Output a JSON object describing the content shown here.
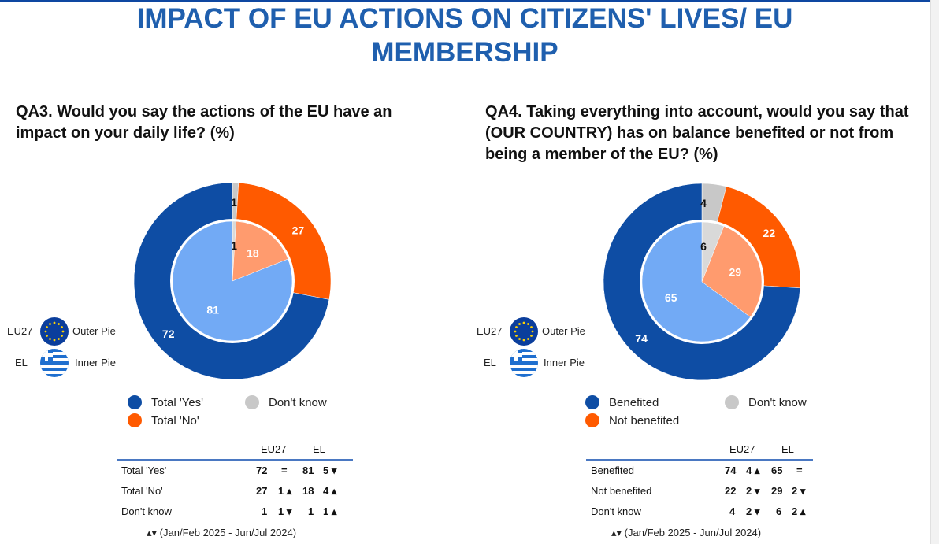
{
  "title": "IMPACT OF EU ACTIONS ON CITIZENS' LIVES/ EU MEMBERSHIP",
  "colors": {
    "title": "#1f5fae",
    "eu_yes": "#0e4da4",
    "eu_no": "#ff5a00",
    "eu_dk": "#c8c8c8",
    "el_yes": "#72aaf5",
    "el_no": "#ff9b6e",
    "el_dk": "#d9d9d9"
  },
  "pie_key": {
    "eu27": "EU27",
    "outer": "Outer Pie",
    "el": "EL",
    "inner": "Inner Pie",
    "eu_flag_icon": "eu-flag-icon",
    "greece_flag_icon": "greece-flag-icon"
  },
  "chart_data": [
    {
      "type": "pie",
      "question": "QA3. Would you say the actions of the EU have an impact on your daily life? (%)",
      "legend": [
        "Total 'Yes'",
        "Don't know",
        "Total 'No'"
      ],
      "outer": {
        "name": "EU27",
        "slices": [
          {
            "label": "Don't know",
            "value": 1
          },
          {
            "label": "Total 'No'",
            "value": 27
          },
          {
            "label": "Total 'Yes'",
            "value": 72
          }
        ]
      },
      "inner": {
        "name": "EL",
        "slices": [
          {
            "label": "Don't know",
            "value": 1
          },
          {
            "label": "Total 'No'",
            "value": 18
          },
          {
            "label": "Total 'Yes'",
            "value": 81
          }
        ]
      },
      "table": {
        "headers": [
          "EU27",
          "EL"
        ],
        "rows": [
          {
            "label": "Total 'Yes'",
            "eu": "72",
            "eu_chg": "=",
            "el": "81",
            "el_chg": "5 ▾"
          },
          {
            "label": "Total 'No'",
            "eu": "27",
            "eu_chg": "1 ▴",
            "el": "18",
            "el_chg": "4 ▴"
          },
          {
            "label": "Don't know",
            "eu": "1",
            "eu_chg": "1 ▾",
            "el": "1",
            "el_chg": "1 ▴"
          }
        ],
        "footnote": "▴▾ (Jan/Feb 2025 - Jun/Jul 2024)"
      }
    },
    {
      "type": "pie",
      "question": "QA4. Taking everything into account, would you say that (OUR COUNTRY) has on balance benefited or not from being a member of the EU? (%)",
      "legend": [
        "Benefited",
        "Don't know",
        "Not benefited"
      ],
      "outer": {
        "name": "EU27",
        "slices": [
          {
            "label": "Don't know",
            "value": 4
          },
          {
            "label": "Not benefited",
            "value": 22
          },
          {
            "label": "Benefited",
            "value": 74
          }
        ]
      },
      "inner": {
        "name": "EL",
        "slices": [
          {
            "label": "Don't know",
            "value": 6
          },
          {
            "label": "Not benefited",
            "value": 29
          },
          {
            "label": "Benefited",
            "value": 65
          }
        ]
      },
      "table": {
        "headers": [
          "EU27",
          "EL"
        ],
        "rows": [
          {
            "label": "Benefited",
            "eu": "74",
            "eu_chg": "4 ▴",
            "el": "65",
            "el_chg": "="
          },
          {
            "label": "Not benefited",
            "eu": "22",
            "eu_chg": "2 ▾",
            "el": "29",
            "el_chg": "2 ▾"
          },
          {
            "label": "Don't know",
            "eu": "4",
            "eu_chg": "2 ▾",
            "el": "6",
            "el_chg": "2 ▴"
          }
        ],
        "footnote": "▴▾ (Jan/Feb 2025 - Jun/Jul 2024)"
      }
    }
  ]
}
